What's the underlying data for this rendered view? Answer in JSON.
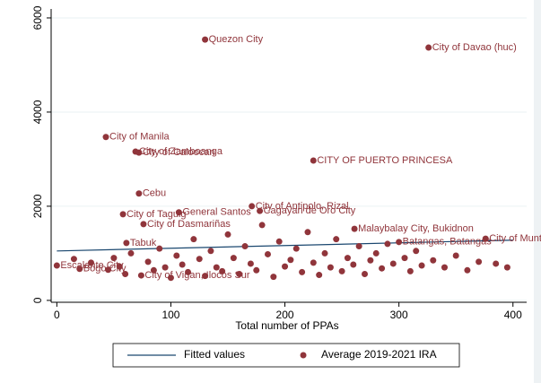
{
  "chart_data": {
    "type": "scatter",
    "xlabel": "Total number of PPAs",
    "xlim": [
      -5,
      412
    ],
    "ylim": [
      -40,
      6190
    ],
    "xticks": [
      0,
      100,
      200,
      300,
      400
    ],
    "yticks": [
      0,
      2000,
      4000,
      6000
    ],
    "grid": true,
    "legend": "bottom",
    "series": [
      {
        "name": "Fitted values",
        "type": "line",
        "color": "#1a476f",
        "x": [
          0,
          400
        ],
        "values": [
          1050,
          1280
        ]
      },
      {
        "name": "Average 2019-2021 IRA",
        "type": "scatter",
        "color": "#90353b",
        "x": [
          130,
          326,
          43,
          69,
          72,
          225,
          72,
          171,
          178,
          107,
          58,
          76,
          261,
          376,
          300,
          61,
          0,
          20,
          74,
          15,
          30,
          45,
          50,
          55,
          60,
          65,
          80,
          85,
          90,
          95,
          100,
          105,
          110,
          115,
          120,
          125,
          130,
          135,
          140,
          145,
          150,
          155,
          160,
          165,
          170,
          175,
          180,
          185,
          190,
          195,
          200,
          205,
          210,
          215,
          220,
          225,
          230,
          235,
          240,
          245,
          250,
          255,
          260,
          265,
          270,
          275,
          280,
          285,
          290,
          295,
          305,
          310,
          315,
          320,
          330,
          340,
          350,
          360,
          370,
          385,
          395
        ],
        "values": [
          5540,
          5370,
          3470,
          3160,
          3140,
          2970,
          2270,
          2000,
          1900,
          1870,
          1830,
          1620,
          1520,
          1310,
          1240,
          1220,
          740,
          670,
          530,
          880,
          800,
          650,
          900,
          720,
          560,
          1000,
          820,
          640,
          1100,
          700,
          480,
          950,
          760,
          600,
          1300,
          880,
          520,
          1050,
          700,
          620,
          1400,
          900,
          560,
          1150,
          780,
          640,
          1600,
          980,
          500,
          1250,
          720,
          860,
          1100,
          600,
          1450,
          800,
          540,
          1000,
          700,
          1300,
          620,
          900,
          760,
          1150,
          560,
          850,
          1000,
          680,
          1200,
          780,
          900,
          620,
          1050,
          740,
          850,
          700,
          950,
          640,
          820,
          780,
          700
        ],
        "labels": [
          "Quezon City",
          "City of Davao (huc)",
          "City of Manila",
          "City of Zamboanga",
          "City of Caloocan",
          "CITY OF PUERTO PRINCESA",
          "Cebu",
          "City of Antipolo, Rizal",
          "Cagayan de Oro City",
          "General Santos",
          "City of Taguig",
          "City of Dasmariñas",
          "Malaybalay City, Bukidnon",
          "City of Muntinlupa",
          "Batangas, Batangas",
          "Tabuk",
          "Escalante City",
          "Bogo City",
          "City of Vigan, Ilocos Sur",
          null,
          null,
          null,
          null,
          null,
          null,
          null,
          null,
          null,
          null,
          null,
          null,
          null,
          null,
          null,
          null,
          null,
          null,
          null,
          null,
          null,
          null,
          null,
          null,
          null,
          null,
          null,
          null,
          null,
          null,
          null,
          null,
          null,
          null,
          null,
          null,
          null,
          null,
          null,
          null,
          null,
          null,
          null,
          null,
          null,
          null,
          null,
          null,
          null,
          null,
          null,
          null,
          null,
          null,
          null,
          null,
          null,
          null
        ]
      }
    ]
  }
}
